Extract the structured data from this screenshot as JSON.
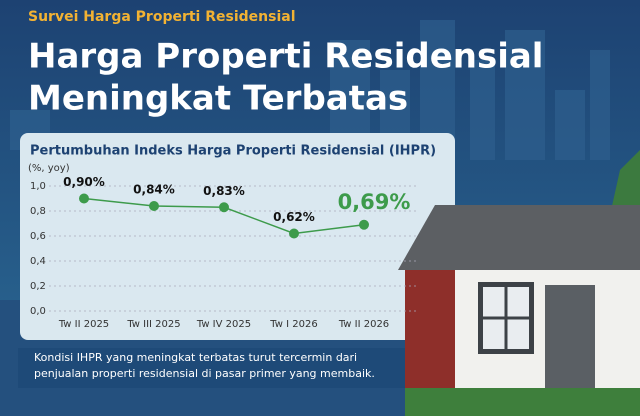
{
  "header": {
    "kicker": "Survei Harga Properti Residensial",
    "title_lines": [
      "Harga Properti Residensial",
      "Meningkat Terbatas"
    ]
  },
  "chart_data": {
    "type": "line",
    "title": "Pertumbuhan Indeks Harga Properti Residensial (IHPR)",
    "y_label": "(%, yoy)",
    "categories": [
      "Tw II 2025",
      "Tw III 2025",
      "Tw IV 2025",
      "Tw I 2026",
      "Tw II 2026"
    ],
    "values": [
      0.9,
      0.84,
      0.83,
      0.62,
      0.69
    ],
    "value_labels": [
      "0,90%",
      "0,84%",
      "0,83%",
      "0,62%",
      "0,69%"
    ],
    "color": "#3d9b4b",
    "ylim": [
      0,
      1.0
    ],
    "yticks": [
      {
        "value": 0,
        "label": "0,0"
      },
      {
        "value": 0.2,
        "label": "0,2"
      },
      {
        "value": 0.4,
        "label": "0,4"
      },
      {
        "value": 0.6,
        "label": "0,6"
      },
      {
        "value": 0.8,
        "label": "0,8"
      },
      {
        "value": 1.0,
        "label": "1,0"
      }
    ],
    "grid": true
  },
  "footnote_lines": [
    "Kondisi IHPR yang meningkat terbatas turut tercermin dari",
    "penjualan properti residensial di pasar primer yang membaik."
  ]
}
